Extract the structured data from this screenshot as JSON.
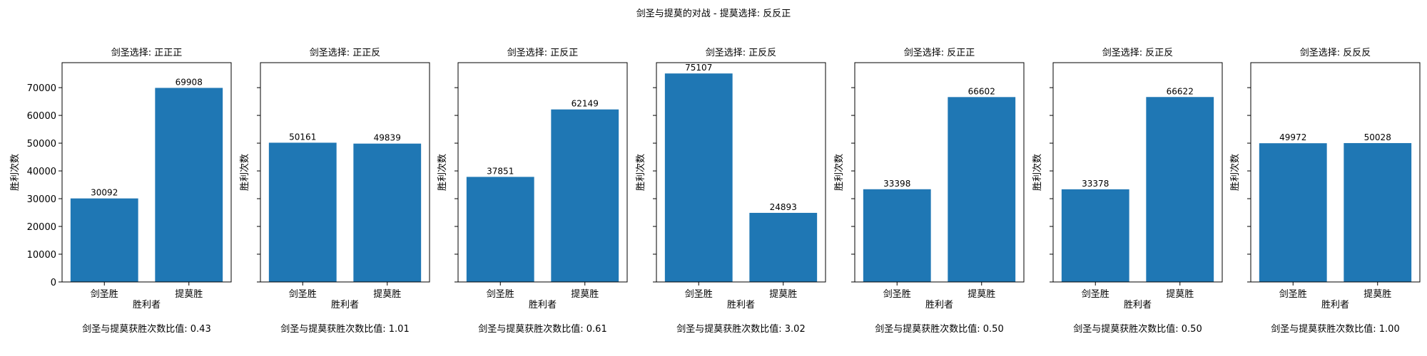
{
  "figure": {
    "suptitle": "剑圣与提莫的对战 - 提莫选择: 反反正"
  },
  "chart_data": [
    {
      "type": "bar",
      "title": "剑圣选择: 正正正",
      "categories": [
        "剑圣胜",
        "提莫胜"
      ],
      "values": [
        30092,
        69908
      ],
      "xlabel": "胜利者",
      "ylabel": "胜利次数",
      "footer": "剑圣与提莫获胜次数比值: 0.43",
      "ylim": [
        0,
        79000
      ],
      "yticks": [
        0,
        10000,
        20000,
        30000,
        40000,
        50000,
        60000,
        70000
      ],
      "bar_color": "#1f77b4"
    },
    {
      "type": "bar",
      "title": "剑圣选择: 正正反",
      "categories": [
        "剑圣胜",
        "提莫胜"
      ],
      "values": [
        50161,
        49839
      ],
      "xlabel": "胜利者",
      "ylabel": "胜利次数",
      "footer": "剑圣与提莫获胜次数比值: 1.01",
      "ylim": [
        0,
        79000
      ],
      "yticks": [
        0,
        10000,
        20000,
        30000,
        40000,
        50000,
        60000,
        70000
      ],
      "bar_color": "#1f77b4"
    },
    {
      "type": "bar",
      "title": "剑圣选择: 正反正",
      "categories": [
        "剑圣胜",
        "提莫胜"
      ],
      "values": [
        37851,
        62149
      ],
      "xlabel": "胜利者",
      "ylabel": "胜利次数",
      "footer": "剑圣与提莫获胜次数比值: 0.61",
      "ylim": [
        0,
        79000
      ],
      "yticks": [
        0,
        10000,
        20000,
        30000,
        40000,
        50000,
        60000,
        70000
      ],
      "bar_color": "#1f77b4"
    },
    {
      "type": "bar",
      "title": "剑圣选择: 正反反",
      "categories": [
        "剑圣胜",
        "提莫胜"
      ],
      "values": [
        75107,
        24893
      ],
      "xlabel": "胜利者",
      "ylabel": "胜利次数",
      "footer": "剑圣与提莫获胜次数比值: 3.02",
      "ylim": [
        0,
        79000
      ],
      "yticks": [
        0,
        10000,
        20000,
        30000,
        40000,
        50000,
        60000,
        70000
      ],
      "bar_color": "#1f77b4"
    },
    {
      "type": "bar",
      "title": "剑圣选择: 反正正",
      "categories": [
        "剑圣胜",
        "提莫胜"
      ],
      "values": [
        33398,
        66602
      ],
      "xlabel": "胜利者",
      "ylabel": "胜利次数",
      "footer": "剑圣与提莫获胜次数比值: 0.50",
      "ylim": [
        0,
        79000
      ],
      "yticks": [
        0,
        10000,
        20000,
        30000,
        40000,
        50000,
        60000,
        70000
      ],
      "bar_color": "#1f77b4"
    },
    {
      "type": "bar",
      "title": "剑圣选择: 反正反",
      "categories": [
        "剑圣胜",
        "提莫胜"
      ],
      "values": [
        33378,
        66622
      ],
      "xlabel": "胜利者",
      "ylabel": "胜利次数",
      "footer": "剑圣与提莫获胜次数比值: 0.50",
      "ylim": [
        0,
        79000
      ],
      "yticks": [
        0,
        10000,
        20000,
        30000,
        40000,
        50000,
        60000,
        70000
      ],
      "bar_color": "#1f77b4"
    },
    {
      "type": "bar",
      "title": "剑圣选择: 反反反",
      "categories": [
        "剑圣胜",
        "提莫胜"
      ],
      "values": [
        49972,
        50028
      ],
      "xlabel": "胜利者",
      "ylabel": "胜利次数",
      "footer": "剑圣与提莫获胜次数比值: 1.00",
      "ylim": [
        0,
        79000
      ],
      "yticks": [
        0,
        10000,
        20000,
        30000,
        40000,
        50000,
        60000,
        70000
      ],
      "bar_color": "#1f77b4"
    }
  ]
}
